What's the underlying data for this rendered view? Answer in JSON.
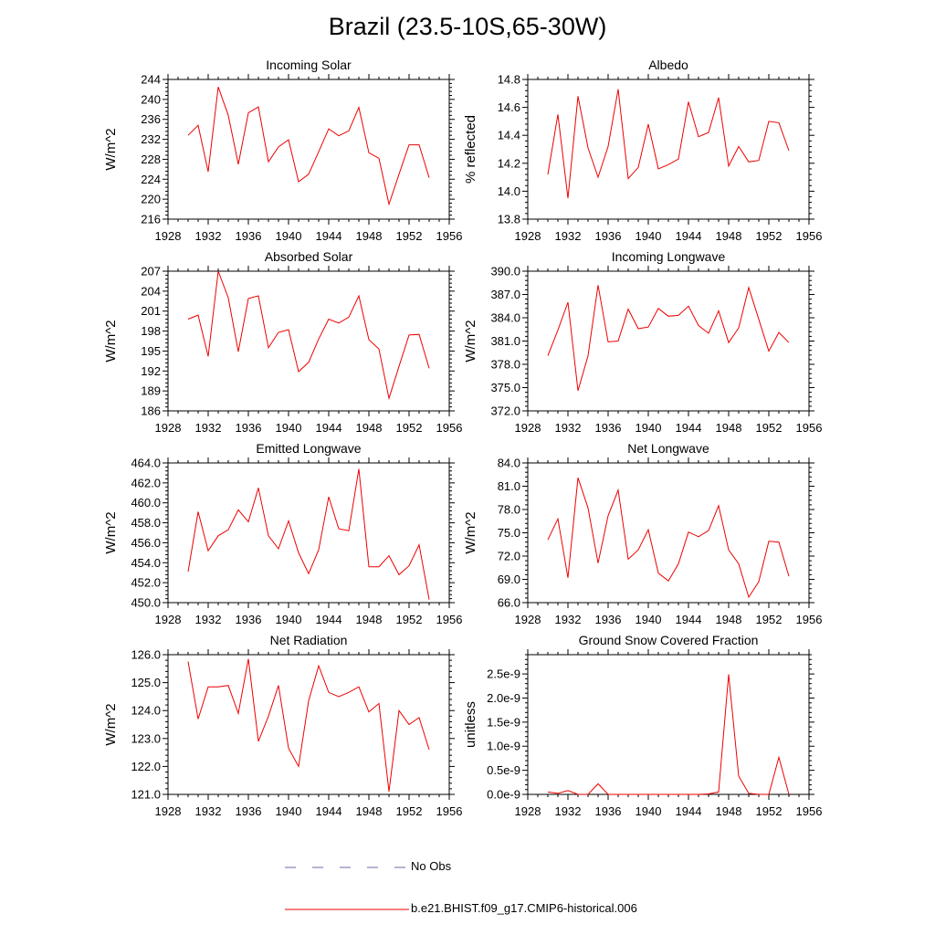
{
  "page": {
    "title": "Brazil (23.5-10S,65-30W)"
  },
  "legend": {
    "obs_label": "No Obs",
    "model_label": "b.e21.BHIST.f09_g17.CMIP6-historical.006"
  },
  "colors": {
    "model_line": "#ee0000",
    "obs_line": "#6a6aaa",
    "axis": "#000000"
  },
  "chart_data": [
    {
      "type": "line",
      "title": "Incoming Solar",
      "ylabel": "W/m^2",
      "xlim": [
        1928,
        1956
      ],
      "xticks": [
        1928,
        1932,
        1936,
        1940,
        1944,
        1948,
        1952,
        1956
      ],
      "ylim": [
        216,
        244
      ],
      "yticks": [
        216,
        220,
        224,
        228,
        232,
        236,
        240,
        244
      ],
      "ytick_labels": [
        "216",
        "220",
        "224",
        "228",
        "232",
        "236",
        "240",
        "244"
      ],
      "x": [
        1930,
        1931,
        1932,
        1933,
        1934,
        1935,
        1936,
        1937,
        1938,
        1939,
        1940,
        1941,
        1942,
        1943,
        1944,
        1945,
        1946,
        1947,
        1948,
        1949,
        1950,
        1951,
        1952,
        1953,
        1954
      ],
      "series": [
        {
          "name": "b.e21.BHIST.f09_g17.CMIP6-historical.006",
          "values": [
            232.8,
            234.8,
            225.5,
            242.5,
            236.8,
            227.0,
            237.3,
            238.5,
            227.5,
            230.5,
            231.9,
            223.5,
            225.0,
            229.5,
            234.1,
            232.7,
            233.7,
            238.4,
            229.3,
            228.2,
            219.0,
            225.0,
            230.9,
            230.9,
            224.3
          ]
        }
      ]
    },
    {
      "type": "line",
      "title": "Albedo",
      "ylabel": "% reflected",
      "xlim": [
        1928,
        1956
      ],
      "xticks": [
        1928,
        1932,
        1936,
        1940,
        1944,
        1948,
        1952,
        1956
      ],
      "ylim": [
        13.8,
        14.8
      ],
      "yticks": [
        13.8,
        14.0,
        14.2,
        14.4,
        14.6,
        14.8
      ],
      "ytick_labels": [
        "13.8",
        "14.0",
        "14.2",
        "14.4",
        "14.6",
        "14.8"
      ],
      "x": [
        1930,
        1931,
        1932,
        1933,
        1934,
        1935,
        1936,
        1937,
        1938,
        1939,
        1940,
        1941,
        1942,
        1943,
        1944,
        1945,
        1946,
        1947,
        1948,
        1949,
        1950,
        1951,
        1952,
        1953,
        1954
      ],
      "series": [
        {
          "name": "b.e21.BHIST.f09_g17.CMIP6-historical.006",
          "values": [
            14.12,
            14.55,
            13.95,
            14.68,
            14.31,
            14.1,
            14.32,
            14.73,
            14.09,
            14.17,
            14.48,
            14.16,
            14.19,
            14.23,
            14.64,
            14.39,
            14.42,
            14.67,
            14.18,
            14.32,
            14.21,
            14.22,
            14.5,
            14.49,
            14.29
          ]
        }
      ]
    },
    {
      "type": "line",
      "title": "Absorbed Solar",
      "ylabel": "W/m^2",
      "xlim": [
        1928,
        1956
      ],
      "xticks": [
        1928,
        1932,
        1936,
        1940,
        1944,
        1948,
        1952,
        1956
      ],
      "ylim": [
        186,
        207
      ],
      "yticks": [
        186,
        189,
        192,
        195,
        198,
        201,
        204,
        207
      ],
      "ytick_labels": [
        "186",
        "189",
        "192",
        "195",
        "198",
        "201",
        "204",
        "207"
      ],
      "x": [
        1930,
        1931,
        1932,
        1933,
        1934,
        1935,
        1936,
        1937,
        1938,
        1939,
        1940,
        1941,
        1942,
        1943,
        1944,
        1945,
        1946,
        1947,
        1948,
        1949,
        1950,
        1951,
        1952,
        1953,
        1954
      ],
      "series": [
        {
          "name": "b.e21.BHIST.f09_g17.CMIP6-historical.006",
          "values": [
            199.8,
            200.4,
            194.2,
            207.0,
            203.0,
            194.9,
            202.9,
            203.3,
            195.5,
            197.8,
            198.2,
            191.9,
            193.3,
            196.8,
            199.8,
            199.2,
            200.1,
            203.3,
            196.7,
            195.3,
            187.9,
            192.7,
            197.4,
            197.5,
            192.4
          ]
        }
      ]
    },
    {
      "type": "line",
      "title": "Incoming Longwave",
      "ylabel": "W/m^2",
      "xlim": [
        1928,
        1956
      ],
      "xticks": [
        1928,
        1932,
        1936,
        1940,
        1944,
        1948,
        1952,
        1956
      ],
      "ylim": [
        372,
        390
      ],
      "yticks": [
        372,
        375,
        378,
        381,
        384,
        387,
        390
      ],
      "ytick_labels": [
        "372.0",
        "375.0",
        "378.0",
        "381.0",
        "384.0",
        "387.0",
        "390.0"
      ],
      "x": [
        1930,
        1931,
        1932,
        1933,
        1934,
        1935,
        1936,
        1937,
        1938,
        1939,
        1940,
        1941,
        1942,
        1943,
        1944,
        1945,
        1946,
        1947,
        1948,
        1949,
        1950,
        1951,
        1952,
        1953,
        1954
      ],
      "series": [
        {
          "name": "b.e21.BHIST.f09_g17.CMIP6-historical.006",
          "values": [
            379.1,
            382.4,
            386.0,
            374.6,
            379.1,
            388.2,
            380.9,
            381.0,
            385.1,
            382.6,
            382.8,
            385.2,
            384.2,
            384.3,
            385.5,
            383.0,
            382.0,
            384.9,
            380.8,
            382.7,
            387.9,
            383.8,
            379.7,
            382.1,
            380.8
          ]
        }
      ]
    },
    {
      "type": "line",
      "title": "Emitted Longwave",
      "ylabel": "W/m^2",
      "xlim": [
        1928,
        1956
      ],
      "xticks": [
        1928,
        1932,
        1936,
        1940,
        1944,
        1948,
        1952,
        1956
      ],
      "ylim": [
        450,
        464
      ],
      "yticks": [
        450,
        452,
        454,
        456,
        458,
        460,
        462,
        464
      ],
      "ytick_labels": [
        "450.0",
        "452.0",
        "454.0",
        "456.0",
        "458.0",
        "460.0",
        "462.0",
        "464.0"
      ],
      "x": [
        1930,
        1931,
        1932,
        1933,
        1934,
        1935,
        1936,
        1937,
        1938,
        1939,
        1940,
        1941,
        1942,
        1943,
        1944,
        1945,
        1946,
        1947,
        1948,
        1949,
        1950,
        1951,
        1952,
        1953,
        1954
      ],
      "series": [
        {
          "name": "b.e21.BHIST.f09_g17.CMIP6-historical.006",
          "values": [
            453.1,
            459.1,
            455.2,
            456.7,
            457.3,
            459.3,
            458.1,
            461.5,
            456.7,
            455.4,
            458.2,
            455.0,
            452.9,
            455.3,
            460.6,
            457.4,
            457.2,
            463.4,
            453.6,
            453.6,
            454.7,
            452.8,
            453.7,
            455.8,
            450.3
          ]
        }
      ]
    },
    {
      "type": "line",
      "title": "Net Longwave",
      "ylabel": "W/m^2",
      "xlim": [
        1928,
        1956
      ],
      "xticks": [
        1928,
        1932,
        1936,
        1940,
        1944,
        1948,
        1952,
        1956
      ],
      "ylim": [
        66,
        84
      ],
      "yticks": [
        66,
        69,
        72,
        75,
        78,
        81,
        84
      ],
      "ytick_labels": [
        "66.0",
        "69.0",
        "72.0",
        "75.0",
        "78.0",
        "81.0",
        "84.0"
      ],
      "x": [
        1930,
        1931,
        1932,
        1933,
        1934,
        1935,
        1936,
        1937,
        1938,
        1939,
        1940,
        1941,
        1942,
        1943,
        1944,
        1945,
        1946,
        1947,
        1948,
        1949,
        1950,
        1951,
        1952,
        1953,
        1954
      ],
      "series": [
        {
          "name": "b.e21.BHIST.f09_g17.CMIP6-historical.006",
          "values": [
            74.1,
            76.8,
            69.2,
            82.1,
            78.2,
            71.1,
            77.2,
            80.5,
            71.6,
            72.8,
            75.4,
            69.8,
            68.8,
            71.0,
            75.1,
            74.5,
            75.3,
            78.5,
            72.8,
            71.0,
            66.7,
            68.7,
            73.9,
            73.8,
            69.4
          ]
        }
      ]
    },
    {
      "type": "line",
      "title": "Net Radiation",
      "ylabel": "W/m^2",
      "xlim": [
        1928,
        1956
      ],
      "xticks": [
        1928,
        1932,
        1936,
        1940,
        1944,
        1948,
        1952,
        1956
      ],
      "ylim": [
        121,
        126
      ],
      "yticks": [
        121,
        122,
        123,
        124,
        125,
        126
      ],
      "ytick_labels": [
        "121.0",
        "122.0",
        "123.0",
        "124.0",
        "125.0",
        "126.0"
      ],
      "x": [
        1930,
        1931,
        1932,
        1933,
        1934,
        1935,
        1936,
        1937,
        1938,
        1939,
        1940,
        1941,
        1942,
        1943,
        1944,
        1945,
        1946,
        1947,
        1948,
        1949,
        1950,
        1951,
        1952,
        1953,
        1954
      ],
      "series": [
        {
          "name": "b.e21.BHIST.f09_g17.CMIP6-historical.006",
          "values": [
            125.75,
            123.7,
            124.85,
            124.85,
            124.9,
            123.9,
            125.85,
            122.9,
            123.8,
            124.9,
            122.65,
            122.0,
            124.35,
            125.6,
            124.65,
            124.5,
            124.65,
            124.85,
            123.95,
            124.25,
            121.1,
            124.0,
            123.5,
            123.75,
            122.6
          ]
        }
      ]
    },
    {
      "type": "line",
      "title": "Ground Snow Covered Fraction",
      "ylabel": "unitless",
      "xlim": [
        1928,
        1956
      ],
      "xticks": [
        1928,
        1932,
        1936,
        1940,
        1944,
        1948,
        1952,
        1956
      ],
      "ylim": [
        0,
        2.9e-09
      ],
      "yticks": [
        0,
        5e-10,
        1e-09,
        1.5e-09,
        2e-09,
        2.5e-09
      ],
      "ytick_labels": [
        "0.0e-9",
        "0.5e-9",
        "1.0e-9",
        "1.5e-9",
        "2.0e-9",
        "2.5e-9"
      ],
      "x": [
        1930,
        1931,
        1932,
        1933,
        1934,
        1935,
        1936,
        1937,
        1938,
        1939,
        1940,
        1941,
        1942,
        1943,
        1944,
        1945,
        1946,
        1947,
        1948,
        1949,
        1950,
        1951,
        1952,
        1953,
        1954
      ],
      "series": [
        {
          "name": "b.e21.BHIST.f09_g17.CMIP6-historical.006",
          "values": [
            5e-11,
            2e-11,
            8e-11,
            0.0,
            0.0,
            2.2e-10,
            0.0,
            0.0,
            0.0,
            0.0,
            0.0,
            0.0,
            0.0,
            0.0,
            0.0,
            0.0,
            1e-11,
            5e-11,
            2.49e-09,
            3.8e-10,
            2e-11,
            0.0,
            0.0,
            7.7e-10,
            0.0
          ]
        }
      ]
    }
  ]
}
